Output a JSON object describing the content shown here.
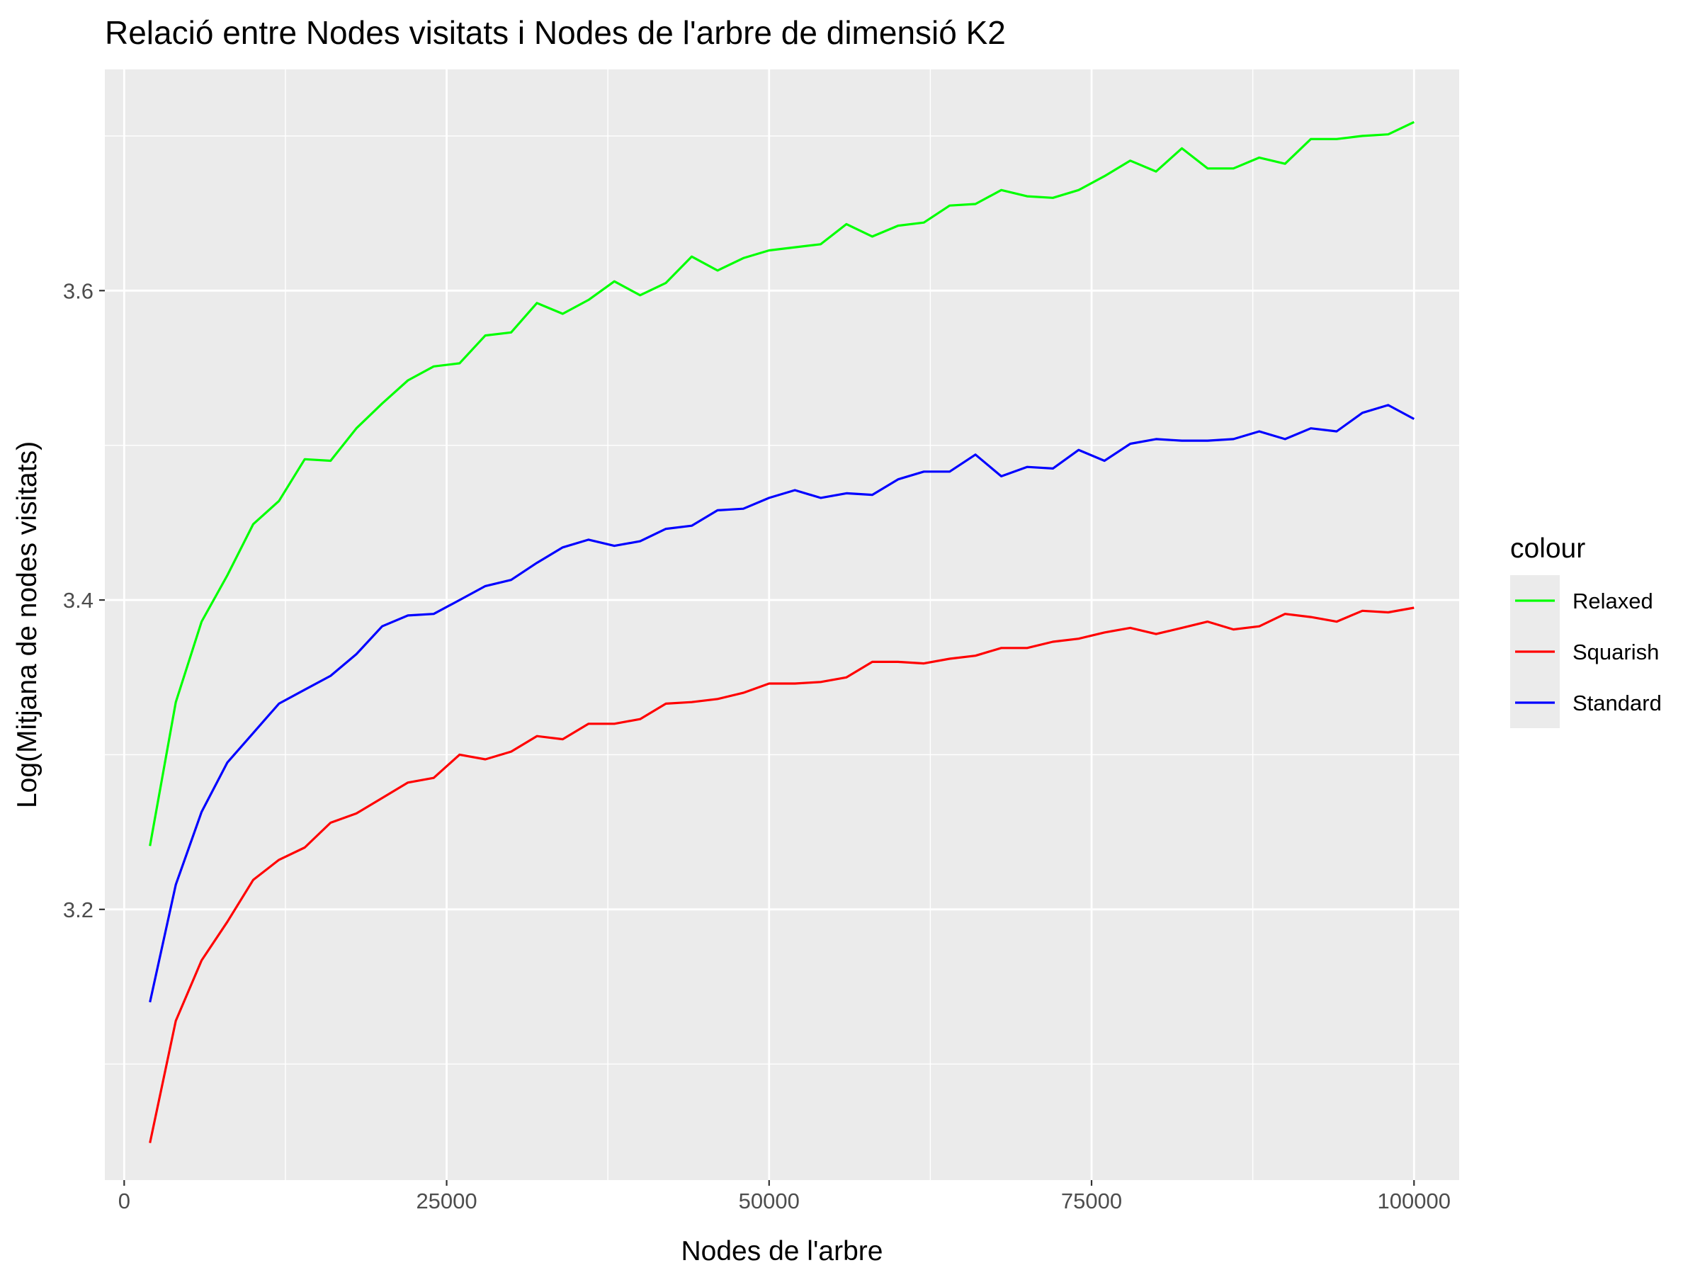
{
  "chart_data": {
    "type": "line",
    "title": "Relació entre Nodes visitats i Nodes de l'arbre de dimensió K2",
    "xlabel": "Nodes de l'arbre",
    "ylabel": "Log(Mitjana de nodes visitats)",
    "xlim": [
      -1500,
      103500
    ],
    "ylim": [
      3.025,
      3.743
    ],
    "x_ticks": [
      0,
      25000,
      50000,
      75000,
      100000
    ],
    "x_tick_labels": [
      "0",
      "25000",
      "50000",
      "75000",
      "100000"
    ],
    "y_ticks": [
      3.2,
      3.4,
      3.6
    ],
    "y_tick_labels": [
      "3.2",
      "3.4",
      "3.6"
    ],
    "y_minor_ticks": [
      3.1,
      3.3,
      3.5,
      3.7
    ],
    "grid": true,
    "legend": {
      "title": "colour",
      "position": "right"
    },
    "x": [
      2000,
      4000,
      6000,
      8000,
      10000,
      12000,
      14000,
      16000,
      18000,
      20000,
      22000,
      24000,
      26000,
      28000,
      30000,
      32000,
      34000,
      36000,
      38000,
      40000,
      42000,
      44000,
      46000,
      48000,
      50000,
      52000,
      54000,
      56000,
      58000,
      60000,
      62000,
      64000,
      66000,
      68000,
      70000,
      72000,
      74000,
      76000,
      78000,
      80000,
      82000,
      84000,
      86000,
      88000,
      90000,
      92000,
      94000,
      96000,
      98000,
      100000
    ],
    "series": [
      {
        "name": "Relaxed",
        "color": "#00ff00",
        "values": [
          3.241,
          3.334,
          3.386,
          3.416,
          3.449,
          3.464,
          3.491,
          3.49,
          3.511,
          3.527,
          3.542,
          3.551,
          3.553,
          3.571,
          3.573,
          3.592,
          3.585,
          3.594,
          3.606,
          3.597,
          3.605,
          3.622,
          3.613,
          3.621,
          3.626,
          3.628,
          3.63,
          3.643,
          3.635,
          3.642,
          3.644,
          3.655,
          3.656,
          3.665,
          3.661,
          3.66,
          3.665,
          3.674,
          3.684,
          3.677,
          3.692,
          3.679,
          3.679,
          3.686,
          3.682,
          3.698,
          3.698,
          3.7,
          3.701,
          3.709
        ]
      },
      {
        "name": "Squarish",
        "color": "#ff0000",
        "values": [
          3.049,
          3.128,
          3.167,
          3.192,
          3.219,
          3.232,
          3.24,
          3.256,
          3.262,
          3.272,
          3.282,
          3.285,
          3.3,
          3.297,
          3.302,
          3.312,
          3.31,
          3.32,
          3.32,
          3.323,
          3.333,
          3.334,
          3.336,
          3.34,
          3.346,
          3.346,
          3.347,
          3.35,
          3.36,
          3.36,
          3.359,
          3.362,
          3.364,
          3.369,
          3.369,
          3.373,
          3.375,
          3.379,
          3.382,
          3.378,
          3.382,
          3.386,
          3.381,
          3.383,
          3.391,
          3.389,
          3.386,
          3.393,
          3.392,
          3.395
        ]
      },
      {
        "name": "Standard",
        "color": "#0000ff",
        "values": [
          3.14,
          3.216,
          3.263,
          3.295,
          3.314,
          3.333,
          3.342,
          3.351,
          3.365,
          3.383,
          3.39,
          3.391,
          3.4,
          3.409,
          3.413,
          3.424,
          3.434,
          3.439,
          3.435,
          3.438,
          3.446,
          3.448,
          3.458,
          3.459,
          3.466,
          3.471,
          3.466,
          3.469,
          3.468,
          3.478,
          3.483,
          3.483,
          3.494,
          3.48,
          3.486,
          3.485,
          3.497,
          3.49,
          3.501,
          3.504,
          3.503,
          3.503,
          3.504,
          3.509,
          3.504,
          3.511,
          3.509,
          3.521,
          3.526,
          3.517
        ]
      }
    ]
  }
}
